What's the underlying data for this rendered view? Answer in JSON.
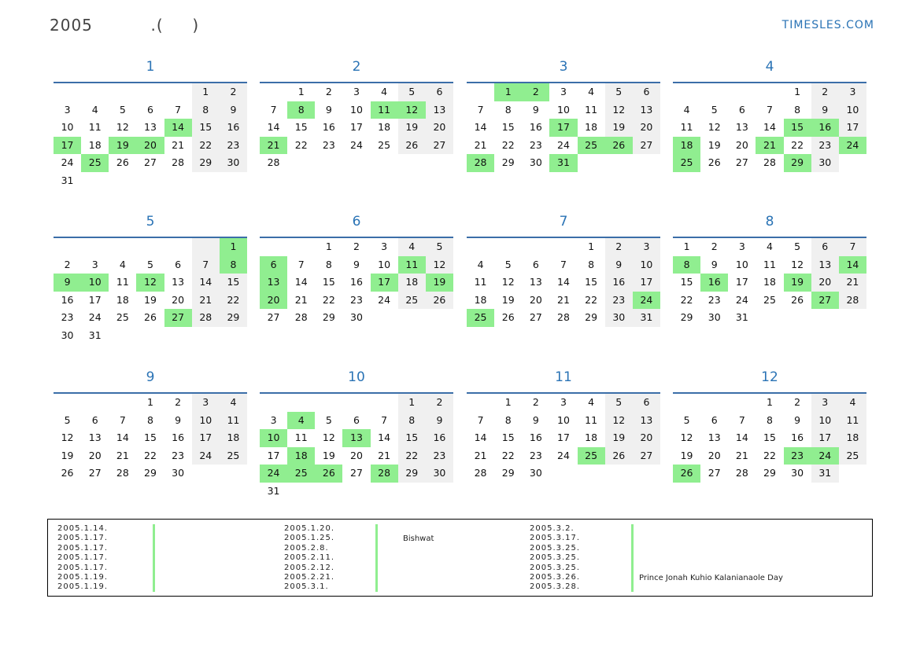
{
  "title": "2005          .(     )",
  "brand": "TIMESLES.COM",
  "months": [
    {
      "name": "1",
      "start": 5,
      "days": 31,
      "holidays": [
        14,
        17,
        19,
        20,
        25
      ]
    },
    {
      "name": "2",
      "start": 1,
      "days": 28,
      "holidays": [
        8,
        11,
        12,
        21
      ]
    },
    {
      "name": "3",
      "start": 1,
      "days": 31,
      "holidays": [
        1,
        2,
        17,
        25,
        26,
        28,
        31
      ]
    },
    {
      "name": "4",
      "start": 4,
      "days": 30,
      "holidays": [
        15,
        16,
        18,
        21,
        24,
        25,
        29
      ]
    },
    {
      "name": "5",
      "start": 6,
      "days": 31,
      "holidays": [
        1,
        8,
        9,
        10,
        12,
        27
      ]
    },
    {
      "name": "6",
      "start": 2,
      "days": 30,
      "holidays": [
        6,
        11,
        13,
        17,
        19,
        20
      ]
    },
    {
      "name": "7",
      "start": 4,
      "days": 31,
      "holidays": [
        24,
        25
      ]
    },
    {
      "name": "8",
      "start": 0,
      "days": 31,
      "holidays": [
        8,
        14,
        16,
        19,
        27
      ]
    },
    {
      "name": "9",
      "start": 3,
      "days": 30,
      "holidays": []
    },
    {
      "name": "10",
      "start": 5,
      "days": 31,
      "holidays": [
        4,
        10,
        13,
        18,
        24,
        25,
        26,
        28
      ]
    },
    {
      "name": "11",
      "start": 1,
      "days": 30,
      "holidays": [
        25
      ]
    },
    {
      "name": "12",
      "start": 3,
      "days": 31,
      "holidays": [
        23,
        24,
        26
      ]
    }
  ],
  "notes": {
    "col1": [
      "2005.1.14.",
      "2005.1.17.",
      "2005.1.17.",
      "2005.1.17.",
      "2005.1.17.",
      "2005.1.19.",
      "2005.1.19."
    ],
    "col2": [
      "2005.1.20.",
      "2005.1.25.",
      "2005.2.8.",
      "2005.2.11.",
      "2005.2.12.",
      "2005.2.21.",
      "2005.3.1."
    ],
    "col3": [
      "2005.3.2.",
      "2005.3.17.",
      "2005.3.25.",
      "2005.3.25.",
      "2005.3.25.",
      "2005.3.26.",
      "2005.3.28."
    ],
    "label_bishwat": "Bishwat",
    "label_kuhio": "Prince Jonah Kuhio Kalanianaole Day"
  }
}
